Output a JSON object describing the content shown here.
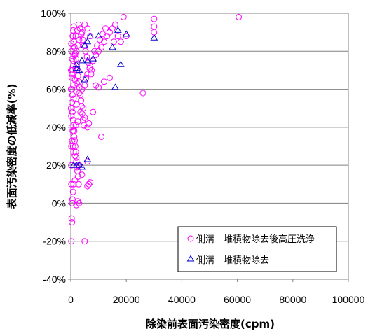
{
  "chart_data": {
    "type": "scatter",
    "xlabel": "除染前表面汚染密度(cpm)",
    "ylabel": "表面汚染密度の低減率(%)",
    "xlim": [
      0,
      100000
    ],
    "ylim": [
      -40,
      100
    ],
    "x_ticks": [
      "0",
      "20000",
      "40000",
      "60000",
      "80000",
      "100000"
    ],
    "y_ticks": [
      "-40%",
      "-20%",
      "0%",
      "20%",
      "40%",
      "60%",
      "80%",
      "100%"
    ],
    "grid": "horizontal",
    "legend_position": "bottom-right",
    "series": [
      {
        "name": "側溝　堆積物除去後高圧洗浄",
        "marker": "circle",
        "color": "#ff00ff",
        "points": [
          [
            200,
            -20
          ],
          [
            300,
            -8
          ],
          [
            400,
            -10
          ],
          [
            500,
            0
          ],
          [
            600,
            2
          ],
          [
            800,
            6
          ],
          [
            1000,
            10
          ],
          [
            1500,
            12
          ],
          [
            2500,
            1
          ],
          [
            3000,
            0
          ],
          [
            2000,
            -1
          ],
          [
            5000,
            -20
          ],
          [
            4000,
            15
          ],
          [
            6000,
            9
          ],
          [
            6500,
            10
          ],
          [
            7000,
            11
          ],
          [
            6000,
            22
          ],
          [
            3000,
            20
          ],
          [
            2000,
            22
          ],
          [
            1500,
            25
          ],
          [
            1000,
            27
          ],
          [
            800,
            30
          ],
          [
            500,
            33
          ],
          [
            1200,
            35
          ],
          [
            700,
            38
          ],
          [
            300,
            40
          ],
          [
            1800,
            41
          ],
          [
            2500,
            43
          ],
          [
            5000,
            45
          ],
          [
            6000,
            40
          ],
          [
            6500,
            42
          ],
          [
            4500,
            50
          ],
          [
            3500,
            48
          ],
          [
            2000,
            52
          ],
          [
            1000,
            55
          ],
          [
            600,
            57
          ],
          [
            400,
            60
          ],
          [
            900,
            62
          ],
          [
            1500,
            65
          ],
          [
            2200,
            63
          ],
          [
            3000,
            58
          ],
          [
            4000,
            60
          ],
          [
            5000,
            62
          ],
          [
            5500,
            66
          ],
          [
            6000,
            68
          ],
          [
            7000,
            72
          ],
          [
            7500,
            70
          ],
          [
            8000,
            75
          ],
          [
            9000,
            78
          ],
          [
            10000,
            80
          ],
          [
            11000,
            82
          ],
          [
            12000,
            85
          ],
          [
            13000,
            88
          ],
          [
            14000,
            90
          ],
          [
            15000,
            92
          ],
          [
            16000,
            94
          ],
          [
            17000,
            88
          ],
          [
            18000,
            85
          ],
          [
            19000,
            98
          ],
          [
            20000,
            88
          ],
          [
            30000,
            90
          ],
          [
            30000,
            93
          ],
          [
            30000,
            97
          ],
          [
            60500,
            98
          ],
          [
            26000,
            58
          ],
          [
            11000,
            35
          ],
          [
            10000,
            61
          ],
          [
            8000,
            48
          ],
          [
            9000,
            62
          ],
          [
            7000,
            88
          ],
          [
            6000,
            92
          ],
          [
            5000,
            94
          ],
          [
            4000,
            90
          ],
          [
            3000,
            86
          ],
          [
            2500,
            83
          ],
          [
            2000,
            80
          ],
          [
            1500,
            78
          ],
          [
            1000,
            75
          ],
          [
            800,
            72
          ],
          [
            600,
            70
          ],
          [
            500,
            68
          ],
          [
            400,
            66
          ],
          [
            1200,
            85
          ],
          [
            1800,
            88
          ],
          [
            2400,
            91
          ],
          [
            2800,
            94
          ],
          [
            3300,
            92
          ],
          [
            3800,
            89
          ],
          [
            4300,
            86
          ],
          [
            4800,
            83
          ],
          [
            5300,
            80
          ],
          [
            5800,
            77
          ],
          [
            6300,
            74
          ],
          [
            6800,
            71
          ],
          [
            7300,
            68
          ],
          [
            200,
            84
          ],
          [
            300,
            80
          ],
          [
            500,
            76
          ],
          [
            700,
            88
          ],
          [
            900,
            91
          ],
          [
            1100,
            93
          ],
          [
            1300,
            82
          ],
          [
            1600,
            79
          ],
          [
            1900,
            76
          ],
          [
            2100,
            73
          ],
          [
            2300,
            70
          ],
          [
            2600,
            67
          ],
          [
            2900,
            64
          ],
          [
            3100,
            61
          ],
          [
            3400,
            57
          ],
          [
            3700,
            54
          ],
          [
            3900,
            51
          ],
          [
            4100,
            47
          ],
          [
            4400,
            44
          ],
          [
            4700,
            41
          ],
          [
            200,
            46
          ],
          [
            300,
            50
          ],
          [
            400,
            53
          ],
          [
            600,
            48
          ],
          [
            800,
            44
          ],
          [
            1000,
            41
          ],
          [
            1200,
            38
          ],
          [
            1400,
            33
          ],
          [
            1600,
            30
          ],
          [
            1800,
            27
          ],
          [
            2000,
            24
          ],
          [
            2200,
            19
          ],
          [
            2400,
            17
          ],
          [
            2600,
            14
          ],
          [
            2800,
            10
          ],
          [
            100,
            70
          ],
          [
            100,
            60
          ],
          [
            100,
            50
          ],
          [
            200,
            30
          ],
          [
            200,
            20
          ],
          [
            200,
            10
          ],
          [
            8500,
            80
          ],
          [
            9500,
            83
          ],
          [
            10500,
            86
          ],
          [
            11500,
            89
          ],
          [
            12500,
            92
          ],
          [
            15500,
            85
          ],
          [
            12000,
            64
          ],
          [
            14000,
            66
          ]
        ]
      },
      {
        "name": "側溝　堆積物除去",
        "marker": "triangle",
        "color": "#0000cc",
        "points": [
          [
            1000,
            20
          ],
          [
            2000,
            20
          ],
          [
            3000,
            20
          ],
          [
            4000,
            19
          ],
          [
            6000,
            23
          ],
          [
            2000,
            71
          ],
          [
            2000,
            73
          ],
          [
            3000,
            70
          ],
          [
            4000,
            75
          ],
          [
            5000,
            65
          ],
          [
            5000,
            83
          ],
          [
            6000,
            85
          ],
          [
            6000,
            75
          ],
          [
            7000,
            88
          ],
          [
            8000,
            76
          ],
          [
            10000,
            88
          ],
          [
            15000,
            82
          ],
          [
            16000,
            61
          ],
          [
            17000,
            91
          ],
          [
            18000,
            73
          ],
          [
            20000,
            89
          ],
          [
            30000,
            87
          ]
        ]
      }
    ]
  }
}
